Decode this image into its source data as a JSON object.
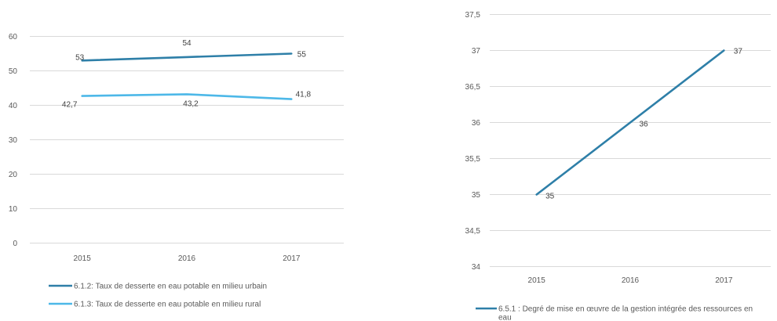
{
  "chart_data": [
    {
      "type": "line",
      "categories": [
        "2015",
        "2016",
        "2017"
      ],
      "series": [
        {
          "name": "6.1.2: Taux de desserte en eau potable en milieu urbain",
          "values": [
            53,
            54,
            55
          ],
          "labels": [
            "53",
            "54",
            "55"
          ],
          "color": "#2e7fa8"
        },
        {
          "name": "6.1.3: Taux de desserte en eau potable en milieu rural",
          "values": [
            42.7,
            43.2,
            41.8
          ],
          "labels": [
            "42,7",
            "43,2",
            "41,8"
          ],
          "color": "#4db8e8"
        }
      ],
      "yticks": [
        0,
        10,
        20,
        30,
        40,
        50,
        60
      ],
      "ytick_labels": [
        "0",
        "10",
        "20",
        "30",
        "40",
        "50",
        "60"
      ],
      "ylim": [
        0,
        60
      ],
      "grid": true,
      "legend": "bottom"
    },
    {
      "type": "line",
      "categories": [
        "2015",
        "2016",
        "2017"
      ],
      "series": [
        {
          "name": "6.5.1 : Degré de mise en œuvre de la gestion intégrée des ressources en eau",
          "name_lines": [
            "6.5.1 : Degré de mise en œuvre de la gestion intégrée des ressources en",
            "eau"
          ],
          "values": [
            35,
            36,
            37
          ],
          "labels": [
            "35",
            "36",
            "37"
          ],
          "color": "#2e7fa8"
        }
      ],
      "yticks": [
        34,
        34.5,
        35,
        35.5,
        36,
        36.5,
        37,
        37.5
      ],
      "ytick_labels": [
        "34",
        "34,5",
        "35",
        "35,5",
        "36",
        "36,5",
        "37",
        "37,5"
      ],
      "ylim": [
        34,
        37.5
      ],
      "grid": true,
      "legend": "bottom"
    }
  ]
}
